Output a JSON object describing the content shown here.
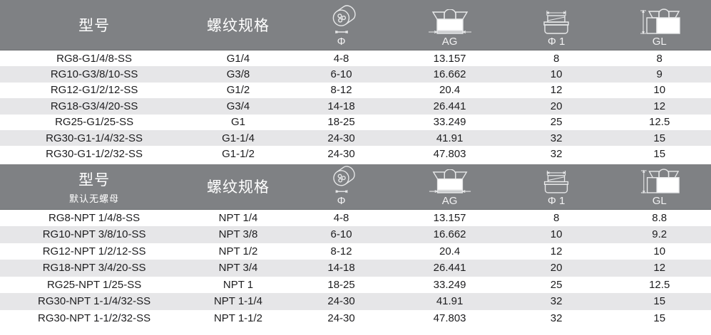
{
  "colors": {
    "header_bg": "#7f8184",
    "header_text": "#ffffff",
    "row_bg": "#ffffff",
    "row_alt_bg": "#e6e6e8",
    "body_text": "#1d1d1f",
    "icon_stroke": "#e8e9ea"
  },
  "tables": [
    {
      "model_label": "型号",
      "model_note": "",
      "thread_label": "螺纹规格",
      "dims": {
        "phi": "Φ",
        "ag": "AG",
        "phi1": "Φ 1",
        "gl": "GL"
      },
      "rows": [
        [
          "RG8-G1/4/8-SS",
          "G1/4",
          "4-8",
          "13.157",
          "8",
          "8"
        ],
        [
          "RG10-G3/8/10-SS",
          "G3/8",
          "6-10",
          "16.662",
          "10",
          "9"
        ],
        [
          "RG12-G1/2/12-SS",
          "G1/2",
          "8-12",
          "20.4",
          "12",
          "10"
        ],
        [
          "RG18-G3/4/20-SS",
          "G3/4",
          "14-18",
          "26.441",
          "20",
          "12"
        ],
        [
          "RG25-G1/25-SS",
          "G1",
          "18-25",
          "33.249",
          "25",
          "12.5"
        ],
        [
          "RG30-G1-1/4/32-SS",
          "G1-1/4",
          "24-30",
          "41.91",
          "32",
          "15"
        ],
        [
          "RG30-G1-1/2/32-SS",
          "G1-1/2",
          "24-30",
          "47.803",
          "32",
          "15"
        ]
      ]
    },
    {
      "model_label": "型号",
      "model_note": "默认无螺母",
      "thread_label": "螺纹规格",
      "dims": {
        "phi": "Φ",
        "ag": "AG",
        "phi1": "Φ 1",
        "gl": "GL"
      },
      "rows": [
        [
          "RG8-NPT 1/4/8-SS",
          "NPT 1/4",
          "4-8",
          "13.157",
          "8",
          "8.8"
        ],
        [
          "RG10-NPT 3/8/10-SS",
          "NPT 3/8",
          "6-10",
          "16.662",
          "10",
          "9.2"
        ],
        [
          "RG12-NPT 1/2/12-SS",
          "NPT 1/2",
          "8-12",
          "20.4",
          "12",
          "10"
        ],
        [
          "RG18-NPT 3/4/20-SS",
          "NPT 3/4",
          "14-18",
          "26.441",
          "20",
          "12"
        ],
        [
          "RG25-NPT 1/25-SS",
          "NPT 1",
          "18-25",
          "33.249",
          "25",
          "12.5"
        ],
        [
          "RG30-NPT 1-1/4/32-SS",
          "NPT 1-1/4",
          "24-30",
          "41.91",
          "32",
          "15"
        ],
        [
          "RG30-NPT 1-1/2/32-SS",
          "NPT 1-1/2",
          "24-30",
          "47.803",
          "32",
          "15"
        ]
      ]
    }
  ]
}
